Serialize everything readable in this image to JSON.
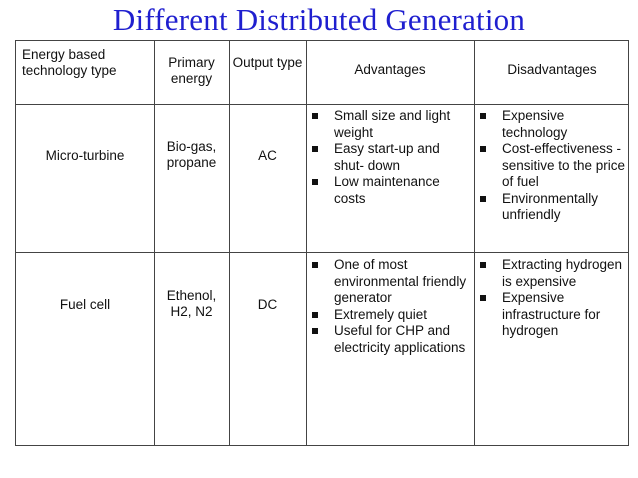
{
  "title": "Different Distributed Generation",
  "headers": {
    "tech": "Energy based technology  type",
    "primary": "Primary energy",
    "output": "Output type",
    "advantages": "Advantages",
    "disadvantages": "Disadvantages"
  },
  "rows": [
    {
      "tech": "Micro-turbine",
      "primary": "Bio-gas, propane",
      "output": "AC",
      "advantages": [
        "Small size and light weight",
        "Easy start-up and shut- down",
        "Low maintenance costs"
      ],
      "disadvantages": [
        "Expensive technology",
        "Cost-effectiveness - sensitive to the price of fuel",
        "Environmentally unfriendly"
      ]
    },
    {
      "tech": "Fuel cell",
      "primary": "Ethenol, H2, N2",
      "output": "DC",
      "advantages": [
        "One of most environmental friendly generator",
        "Extremely quiet",
        "Useful for CHP and electricity applications"
      ],
      "disadvantages": [
        "Extracting hydrogen is expensive",
        "Expensive infrastructure for hydrogen"
      ]
    }
  ]
}
